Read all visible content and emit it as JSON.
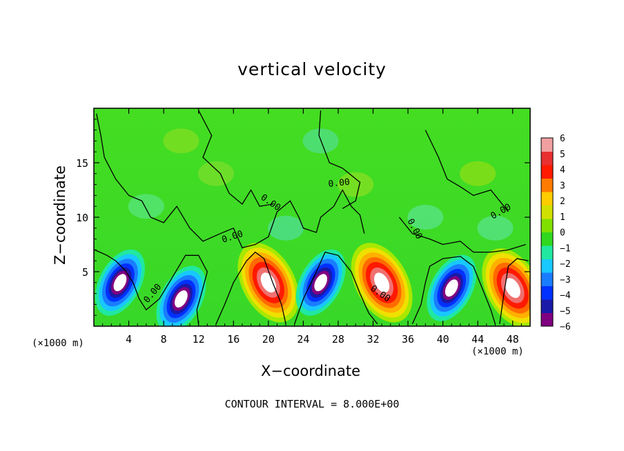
{
  "chart_data": {
    "type": "heatmap",
    "title": "vertical velocity",
    "xlabel": "X−coordinate",
    "ylabel": "Z−coordinate",
    "x_unit_label": "(×1000 m)",
    "xlim": [
      0,
      50
    ],
    "ylim": [
      0,
      20
    ],
    "x_ticks": [
      "4",
      "8",
      "12",
      "16",
      "20",
      "24",
      "28",
      "32",
      "36",
      "40",
      "44",
      "48"
    ],
    "y_ticks": [
      "5",
      "10",
      "15"
    ],
    "contour_interval_text": "CONTOUR INTERVAL = 8.000E+00",
    "contour_labels": [
      "0.00",
      "0.00",
      "0.00",
      "0.00",
      "0.00",
      "0.00",
      "0.00"
    ],
    "colorbar": {
      "range": [
        -6,
        6
      ],
      "tick_labels": [
        "6",
        "5",
        "4",
        "3",
        "2",
        "1",
        "0",
        "−1",
        "−2",
        "−3",
        "−4",
        "−5",
        "−6"
      ],
      "colors": [
        "#800080",
        "#1a1aa8",
        "#0030ff",
        "#1a7cff",
        "#18c8ff",
        "#20e8a0",
        "#30d820",
        "#80e000",
        "#d0e000",
        "#ffcc00",
        "#ff7a00",
        "#ff1a00",
        "#e83030",
        "#f0a0a0"
      ]
    },
    "features": [
      {
        "x": 20,
        "z": 4,
        "sign": "positive",
        "value": 6
      },
      {
        "x": 33,
        "z": 4,
        "sign": "positive",
        "value": 6
      },
      {
        "x": 48,
        "z": 3.5,
        "sign": "positive",
        "value": 6
      },
      {
        "x": 3,
        "z": 4,
        "sign": "negative",
        "value": -6
      },
      {
        "x": 10,
        "z": 2.5,
        "sign": "negative",
        "value": -6
      },
      {
        "x": 26,
        "z": 4,
        "sign": "negative",
        "value": -6
      },
      {
        "x": 41,
        "z": 3.5,
        "sign": "negative",
        "value": -6
      }
    ]
  }
}
